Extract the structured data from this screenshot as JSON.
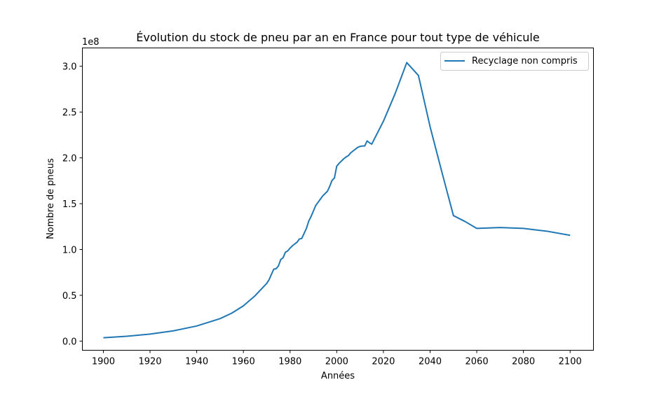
{
  "chart_data": {
    "type": "line",
    "title": "Évolution du stock de pneu par an en France pour tout type de véhicule",
    "xlabel": "Années",
    "ylabel": "Nombre de pneus",
    "y_offset_label": "1e8",
    "xlim": [
      1891,
      2110
    ],
    "ylim": [
      -10000000,
      320000000
    ],
    "xticks": [
      1900,
      1920,
      1940,
      1960,
      1980,
      2000,
      2020,
      2040,
      2060,
      2080,
      2100
    ],
    "xtick_labels": [
      "1900",
      "1920",
      "1940",
      "1960",
      "1980",
      "2000",
      "2020",
      "2040",
      "2060",
      "2080",
      "2100"
    ],
    "yticks": [
      0,
      50000000,
      100000000,
      150000000,
      200000000,
      250000000,
      300000000
    ],
    "ytick_labels": [
      "0.0",
      "0.5",
      "1.0",
      "1.5",
      "2.0",
      "2.5",
      "3.0"
    ],
    "grid": false,
    "legend_position": "top-right",
    "series": [
      {
        "name": "Recyclage non compris",
        "color": "#1f77b4",
        "x": [
          1900,
          1910,
          1920,
          1930,
          1940,
          1950,
          1955,
          1960,
          1965,
          1970,
          1971,
          1973,
          1974,
          1975,
          1976,
          1977,
          1978,
          1979,
          1980,
          1981,
          1982,
          1983,
          1984,
          1985,
          1986,
          1987,
          1988,
          1989,
          1990,
          1991,
          1992,
          1993,
          1994,
          1995,
          1996,
          1997,
          1998,
          1999,
          2000,
          2001,
          2002,
          2003,
          2004,
          2005,
          2006,
          2007,
          2008,
          2009,
          2010,
          2011,
          2012,
          2013,
          2014,
          2015,
          2020,
          2025,
          2030,
          2035,
          2040,
          2045,
          2050,
          2055,
          2060,
          2070,
          2080,
          2090,
          2100
        ],
        "y": [
          3700000,
          5300000,
          7700000,
          11200000,
          16500000,
          24500000,
          30500000,
          38500000,
          49500000,
          63000000,
          67000000,
          78500000,
          79000000,
          82000000,
          89000000,
          91000000,
          97000000,
          98500000,
          101500000,
          104000000,
          106000000,
          108000000,
          111500000,
          112000000,
          117500000,
          123000000,
          131000000,
          136000000,
          142000000,
          148000000,
          151500000,
          155000000,
          158500000,
          161000000,
          163500000,
          169000000,
          175500000,
          178000000,
          191000000,
          194000000,
          196500000,
          199000000,
          201000000,
          202500000,
          205500000,
          207500000,
          209500000,
          211500000,
          212500000,
          213000000,
          213000000,
          218500000,
          216500000,
          215000000,
          240000000,
          270000000,
          304000000,
          290000000,
          234000000,
          185000000,
          137000000,
          130500000,
          123000000,
          124000000,
          123000000,
          120000000,
          115500000
        ]
      }
    ]
  }
}
